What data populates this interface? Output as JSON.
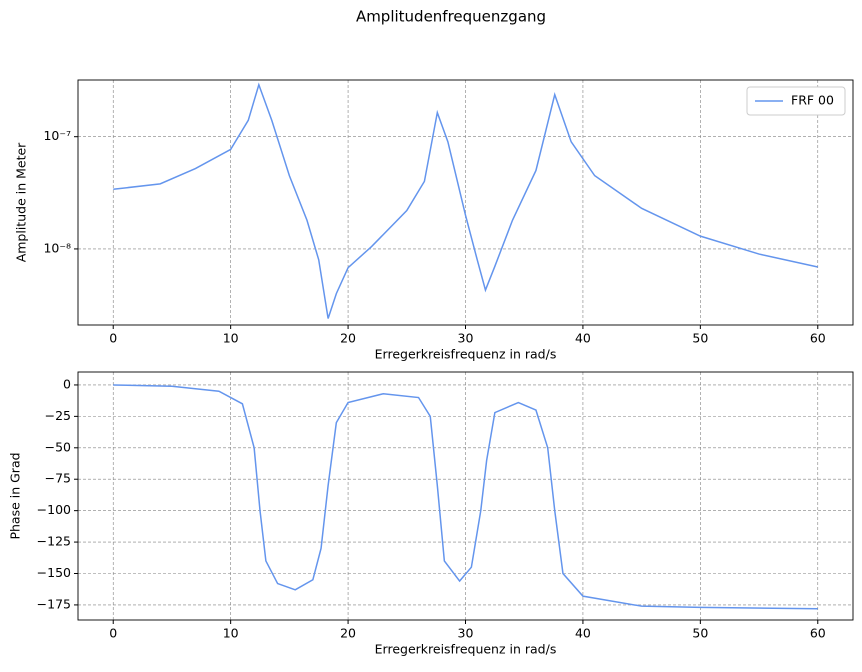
{
  "title": "Amplitudenfrequenzgang",
  "chart_data": [
    {
      "type": "line",
      "yscale": "log",
      "grid": true,
      "legend": "upper right",
      "xlabel": "Erregerkreisfrequenz in rad/s",
      "ylabel": "Amplitude in Meter",
      "xlim": [
        -3,
        63
      ],
      "xticks": [
        0,
        10,
        20,
        30,
        40,
        50,
        60
      ],
      "ylim": [
        2.1e-09,
        3.2e-07
      ],
      "yticks": [
        {
          "value": 1e-08,
          "label": "10⁻⁸"
        },
        {
          "value": 1e-07,
          "label": "10⁻⁷"
        }
      ],
      "x": [
        0,
        4,
        7,
        10,
        11.5,
        12.4,
        13.5,
        15,
        16.5,
        17.5,
        18.3,
        19,
        20,
        22,
        25,
        26.5,
        27.6,
        28.5,
        30,
        31,
        31.7,
        32.5,
        34,
        36,
        37.6,
        39,
        41,
        45,
        50,
        55,
        60
      ],
      "series": [
        {
          "name": "FRF 00",
          "color": "#6495ed",
          "values": [
            3.4e-08,
            3.8e-08,
            5.2e-08,
            7.7e-08,
            1.4e-07,
            2.9e-07,
            1.4e-07,
            4.5e-08,
            1.8e-08,
            8e-09,
            2.4e-09,
            4e-09,
            6.8e-09,
            1.05e-08,
            2.2e-08,
            4e-08,
            1.64e-07,
            9e-08,
            2e-08,
            8e-09,
            4.3e-09,
            7e-09,
            1.8e-08,
            5e-08,
            2.37e-07,
            9e-08,
            4.5e-08,
            2.3e-08,
            1.3e-08,
            9e-09,
            6.9e-09
          ]
        }
      ]
    },
    {
      "type": "line",
      "grid": true,
      "xlabel": "Erregerkreisfrequenz in rad/s",
      "ylabel": "Phase in Grad",
      "xlim": [
        -3,
        63
      ],
      "xticks": [
        0,
        10,
        20,
        30,
        40,
        50,
        60
      ],
      "ylim": [
        -187,
        10.3
      ],
      "yticks": [
        0,
        {
          "value": -25,
          "label": "−25"
        },
        {
          "value": -50,
          "label": "−50"
        },
        {
          "value": -75,
          "label": "−75"
        },
        {
          "value": -100,
          "label": "−100"
        },
        {
          "value": -125,
          "label": "−125"
        },
        {
          "value": -150,
          "label": "−150"
        },
        {
          "value": -175,
          "label": "−175"
        }
      ],
      "x": [
        0,
        5,
        9,
        11,
        12,
        12.5,
        13,
        14,
        15.5,
        17,
        17.7,
        18.3,
        19,
        20,
        23,
        26,
        27,
        27.6,
        28.2,
        29.5,
        30.5,
        31.3,
        31.8,
        32.5,
        34.5,
        36,
        37,
        37.6,
        38.3,
        40,
        45,
        50,
        60
      ],
      "series": [
        {
          "name": "FRF 00",
          "color": "#6495ed",
          "values": [
            0,
            -1,
            -5,
            -15,
            -50,
            -100,
            -140,
            -158,
            -163,
            -155,
            -130,
            -80,
            -30,
            -14,
            -7,
            -10,
            -25,
            -80,
            -140,
            -156,
            -145,
            -100,
            -60,
            -22,
            -14,
            -20,
            -50,
            -100,
            -150,
            -168,
            -176,
            -177,
            -178
          ]
        }
      ]
    }
  ]
}
